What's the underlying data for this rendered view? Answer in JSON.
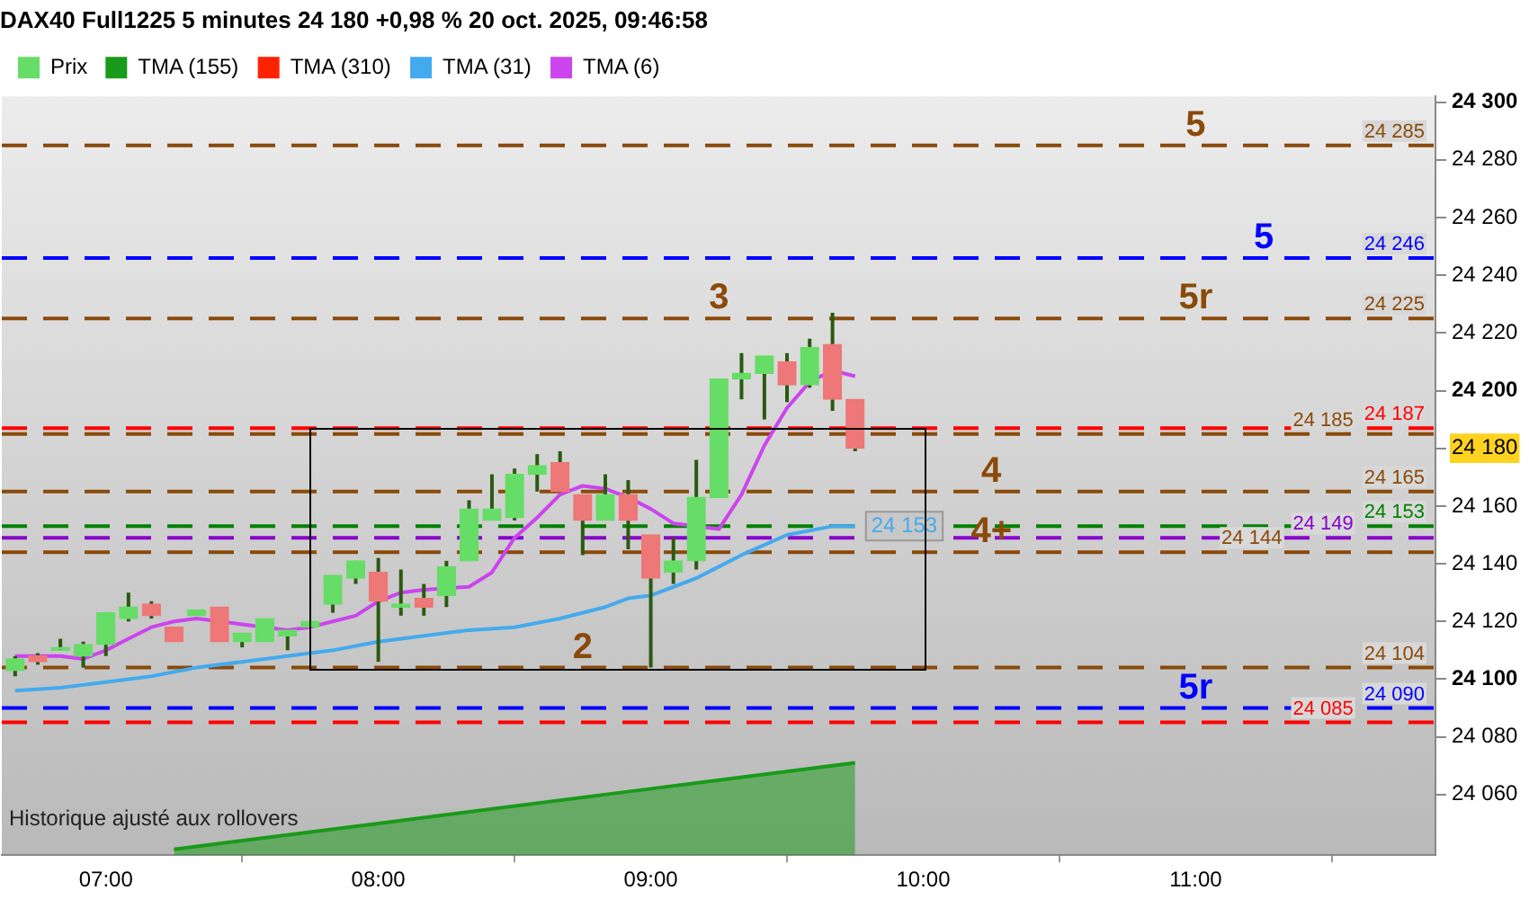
{
  "chart_data": {
    "type": "candlestick",
    "title": "DAX40 Full1225 5 minutes 24 180 +0,98 % 20 oct. 2025, 09:46:58",
    "x": [
      6.667,
      6.75,
      6.833,
      6.917,
      7,
      7.083,
      7.167,
      7.25,
      7.333,
      7.417,
      7.5,
      7.583,
      7.667,
      7.75,
      7.833,
      7.917,
      8,
      8.083,
      8.167,
      8.25,
      8.333,
      8.417,
      8.5,
      8.583,
      8.667,
      8.75,
      8.833,
      8.917,
      9,
      9.083,
      9.167,
      9.25,
      9.333,
      9.417,
      9.5,
      9.583,
      9.667,
      9.75
    ],
    "series": [
      {
        "name": "Prix",
        "type": "candlestick",
        "color": "#66dd66",
        "colors": [
          "#66dd66",
          "#ee7777",
          "#66dd66",
          "#66dd66",
          "#66dd66",
          "#66dd66",
          "#ee7777",
          "#ee7777",
          "#66dd66",
          "#ee7777",
          "#66dd66",
          "#66dd66",
          "#66dd66",
          "#66dd66",
          "#66dd66",
          "#66dd66",
          "#ee7777",
          "#66dd66",
          "#ee7777",
          "#66dd66",
          "#66dd66",
          "#66dd66",
          "#66dd66",
          "#66dd66",
          "#ee7777",
          "#ee7777",
          "#66dd66",
          "#ee7777",
          "#ee7777",
          "#66dd66",
          "#66dd66",
          "#66dd66",
          "#66dd66",
          "#66dd66",
          "#ee7777",
          "#66dd66",
          "#ee7777",
          "#ee7777"
        ],
        "ohlc": [
          [
            24103,
            24108,
            24101,
            24107
          ],
          [
            24108,
            24109,
            24105,
            24106
          ],
          [
            24110,
            24114,
            24110,
            24111
          ],
          [
            24108,
            24113,
            24104,
            24112
          ],
          [
            24112,
            24123,
            24108,
            24123
          ],
          [
            24121,
            24130,
            24120,
            24125
          ],
          [
            24126,
            24127,
            24121,
            24122
          ],
          [
            24118,
            24118,
            24113,
            24113
          ],
          [
            24122,
            24124,
            24122,
            24124
          ],
          [
            24125,
            24125,
            24113,
            24113
          ],
          [
            24113,
            24116,
            24111,
            24116
          ],
          [
            24113,
            24121,
            24113,
            24121
          ],
          [
            24115,
            24117,
            24110,
            24117
          ],
          [
            24118,
            24120,
            24118,
            24120
          ],
          [
            24126,
            24136,
            24123,
            24136
          ],
          [
            24135,
            24141,
            24133,
            24141
          ],
          [
            24137,
            24142,
            24106,
            24127
          ],
          [
            24125,
            24138,
            24122,
            24126
          ],
          [
            24128,
            24133,
            24122,
            24125
          ],
          [
            24129,
            24141,
            24125,
            24139
          ],
          [
            24141,
            24162,
            24141,
            24159
          ],
          [
            24155,
            24171,
            24155,
            24159
          ],
          [
            24156,
            24173,
            24155,
            24171
          ],
          [
            24171,
            24178,
            24165,
            24174
          ],
          [
            24175,
            24179,
            24165,
            24165
          ],
          [
            24164,
            24164,
            24143,
            24155
          ],
          [
            24155,
            24171,
            24155,
            24164
          ],
          [
            24164,
            24169,
            24145,
            24155
          ],
          [
            24150,
            24150,
            24104,
            24135
          ],
          [
            24137,
            24149,
            24133,
            24141
          ],
          [
            24141,
            24176,
            24138,
            24163
          ],
          [
            24163,
            24204,
            24163,
            24204
          ],
          [
            24204,
            24213,
            24197,
            24206
          ],
          [
            24206,
            24212,
            24190,
            24212
          ],
          [
            24210,
            24213,
            24196,
            24202
          ],
          [
            24202,
            24218,
            24201,
            24215
          ],
          [
            24216,
            24227,
            24193,
            24197
          ],
          [
            24197,
            24197,
            24179,
            24180
          ]
        ]
      },
      {
        "name": "TMA (155)",
        "type": "area",
        "color": "#1a9a1a",
        "x": [
          7.25,
          8,
          9,
          9.75
        ],
        "values": [
          24041,
          24050,
          24062,
          24071
        ]
      },
      {
        "name": "TMA (310)",
        "type": "line",
        "color": "#ff2200",
        "values": [
          null,
          null,
          null,
          null,
          null,
          null,
          null,
          null,
          null,
          null,
          null,
          null,
          null,
          null,
          null,
          null,
          null,
          null,
          null,
          null,
          null,
          null,
          null,
          null,
          null,
          null,
          null,
          null,
          null,
          null,
          null,
          null,
          null,
          null,
          null,
          null,
          null,
          null
        ]
      },
      {
        "name": "TMA (31)",
        "type": "line",
        "color": "#44aaee",
        "x": [
          6.667,
          6.833,
          7,
          7.167,
          7.333,
          7.5,
          7.667,
          7.833,
          8,
          8.167,
          8.333,
          8.5,
          8.667,
          8.833,
          8.917,
          9,
          9.167,
          9.333,
          9.5,
          9.667,
          9.75
        ],
        "values": [
          24096,
          24097,
          24099,
          24101,
          24104,
          24106,
          24108,
          24110,
          24113,
          24115,
          24117,
          24118,
          24121,
          24125,
          24128,
          24129,
          24135,
          24143,
          24150,
          24153,
          24153
        ],
        "value_labels": [
          null,
          null,
          null,
          null,
          null,
          null,
          null,
          null,
          null,
          null,
          null,
          null,
          null,
          null,
          null,
          null,
          null,
          null,
          null,
          null,
          "24 153"
        ]
      },
      {
        "name": "TMA (6)",
        "type": "line",
        "color": "#cc44ee",
        "values": [
          24108,
          24108,
          24108,
          24107,
          24110,
          24114,
          24118,
          24120,
          24121,
          24120,
          24119,
          24118,
          24117,
          24118,
          24120,
          24122,
          24127,
          24130,
          24131,
          null,
          24132,
          24137,
          24149,
          24156,
          24164,
          24167,
          24166,
          24163,
          24159,
          24154,
          null,
          24152,
          24164,
          24181,
          24194,
          24203,
          24207,
          24205
        ]
      }
    ],
    "xlim": [
      6.618,
      11.88
    ],
    "xticks": [
      {
        "value": 7,
        "label": "07:00"
      },
      {
        "value": 8,
        "label": "08:00"
      },
      {
        "value": 9,
        "label": "09:00"
      },
      {
        "value": 10,
        "label": "10:00"
      },
      {
        "value": 11,
        "label": "11:00"
      }
    ],
    "ylim": [
      24039,
      24302
    ],
    "yticks": [
      24060,
      24080,
      24100,
      24120,
      24140,
      24160,
      24180,
      24200,
      24220,
      24240,
      24260,
      24280,
      24300
    ],
    "legend": "top left",
    "line_style": "solid",
    "ref_lines": [
      {
        "axis": "y",
        "value": 24285,
        "label": "24 285",
        "color": "#8a4a0a",
        "line_style": "dashed"
      },
      {
        "axis": "y",
        "value": 24246,
        "label": "24 246",
        "color": "#0000ff",
        "line_style": "dashed"
      },
      {
        "axis": "y",
        "value": 24225,
        "label": "24 225",
        "color": "#8a4a0a",
        "line_style": "dashed"
      },
      {
        "axis": "y",
        "value": 24187,
        "label": "24 187",
        "color": "#ff0000",
        "line_style": "dashed"
      },
      {
        "axis": "y",
        "value": 24185,
        "label": "24 185",
        "color": "#8a4a0a",
        "line_style": "dashed"
      },
      {
        "axis": "y",
        "value": 24165,
        "label": "24 165",
        "color": "#8a4a0a",
        "line_style": "dashed"
      },
      {
        "axis": "y",
        "value": 24153,
        "label": "24 153",
        "color": "#008000",
        "line_style": "dashed"
      },
      {
        "axis": "y",
        "value": 24149,
        "label": "24 149",
        "color": "#8800cc",
        "line_style": "dashed"
      },
      {
        "axis": "y",
        "value": 24144,
        "label": "24 144",
        "color": "#8a4a0a",
        "line_style": "dashed"
      },
      {
        "axis": "y",
        "value": 24104,
        "label": "24 104",
        "color": "#8a4a0a",
        "line_style": "dashed"
      },
      {
        "axis": "y",
        "value": 24090,
        "label": "24 090",
        "color": "#0000ff",
        "line_style": "dashed"
      },
      {
        "axis": "y",
        "value": 24085,
        "label": "24 085",
        "color": "#ff0000",
        "line_style": "dashed"
      }
    ],
    "annotations": [
      {
        "text": "5",
        "x": 11,
        "y": 24285
      },
      {
        "text": "5",
        "x": 11.25,
        "y": 24246
      },
      {
        "text": "3",
        "x": 9.25,
        "y": 24225
      },
      {
        "text": "5r",
        "x": 11,
        "y": 24225
      },
      {
        "text": "4",
        "x": 10.25,
        "y": 24165
      },
      {
        "text": "4+",
        "x": 10.25,
        "y": 24144
      },
      {
        "text": "2",
        "x": 8.75,
        "y": 24104
      },
      {
        "text": "5r",
        "x": 11,
        "y": 24090
      },
      "Historique ajusté aux rollovers"
    ]
  }
}
